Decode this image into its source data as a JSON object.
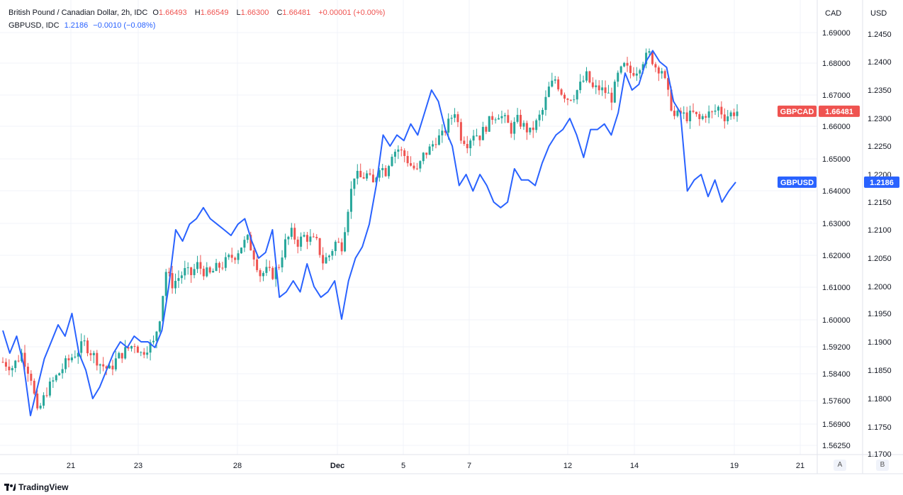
{
  "legend": {
    "main": {
      "title": "British Pound / Canadian Dollar, 2h, IDC",
      "o_label": "O",
      "o": "1.66493",
      "h_label": "H",
      "h": "1.66549",
      "l_label": "L",
      "l": "1.66300",
      "c_label": "C",
      "c": "1.66481",
      "change": "+0.00001 (+0.00%)"
    },
    "compare": {
      "title": "GBPUSD, IDC",
      "value": "1.2186",
      "change": "−0.0010 (−0.08%)"
    }
  },
  "scales": {
    "left_header": "CAD",
    "right_header": "USD",
    "left_button": "A",
    "right_button": "B"
  },
  "badges": {
    "gbpcad_name": "GBPCAD",
    "gbpcad_value": "1.66481",
    "gbpusd_name": "GBPUSD",
    "gbpusd_value": "1.2186"
  },
  "footer": {
    "brand": "TradingView"
  },
  "colors": {
    "up": "#26a69a",
    "down": "#ef5350",
    "line": "#2962ff",
    "grid": "#f0f3fa"
  },
  "chart_data": {
    "type": "line",
    "title": "British Pound / Canadian Dollar, 2h, IDC",
    "x_ticks": [
      "21",
      "23",
      "28",
      "Dec",
      "5",
      "7",
      "12",
      "14",
      "19",
      "21"
    ],
    "cad_axis_ticks": [
      "1.69000",
      "1.68000",
      "1.67000",
      "1.66000",
      "1.65000",
      "1.64000",
      "1.63000",
      "1.62000",
      "1.61000",
      "1.60000",
      "1.59200",
      "1.58400",
      "1.57600",
      "1.56900",
      "1.56250"
    ],
    "usd_axis_ticks": [
      "1.2450",
      "1.2400",
      "1.2350",
      "1.2300",
      "1.2250",
      "1.2200",
      "1.2150",
      "1.2100",
      "1.2050",
      "1.2000",
      "1.1950",
      "1.1900",
      "1.1850",
      "1.1800",
      "1.1750",
      "1.1700"
    ],
    "series": [
      {
        "name": "GBPCAD",
        "type": "candlestick",
        "close_path": [
          [
            0,
            1.5875
          ],
          [
            3,
            1.586
          ],
          [
            6,
            1.59
          ],
          [
            9,
            1.583
          ],
          [
            11,
            1.572
          ],
          [
            14,
            1.579
          ],
          [
            17,
            1.583
          ],
          [
            20,
            1.587
          ],
          [
            23,
            1.59
          ],
          [
            26,
            1.593
          ],
          [
            28,
            1.5905
          ],
          [
            31,
            1.587
          ],
          [
            34,
            1.585
          ],
          [
            36,
            1.588
          ],
          [
            38,
            1.59
          ],
          [
            40,
            1.5915
          ],
          [
            42,
            1.593
          ],
          [
            44,
            1.59
          ],
          [
            46,
            1.592
          ],
          [
            48,
            1.593
          ],
          [
            50,
            1.601
          ],
          [
            52,
            1.615
          ],
          [
            54,
            1.611
          ],
          [
            56,
            1.613
          ],
          [
            58,
            1.615
          ],
          [
            60,
            1.614
          ],
          [
            62,
            1.617
          ],
          [
            64,
            1.615
          ],
          [
            66,
            1.614
          ],
          [
            68,
            1.616
          ],
          [
            70,
            1.617
          ],
          [
            72,
            1.619
          ],
          [
            74,
            1.62
          ],
          [
            76,
            1.623
          ],
          [
            78,
            1.625
          ],
          [
            80,
            1.62
          ],
          [
            82,
            1.614
          ],
          [
            84,
            1.615
          ],
          [
            86,
            1.614
          ],
          [
            88,
            1.617
          ],
          [
            90,
            1.624
          ],
          [
            92,
            1.627
          ],
          [
            94,
            1.624
          ],
          [
            96,
            1.626
          ],
          [
            98,
            1.625
          ],
          [
            100,
            1.624
          ],
          [
            102,
            1.618
          ],
          [
            104,
            1.62
          ],
          [
            106,
            1.624
          ],
          [
            108,
            1.623
          ],
          [
            110,
            1.635
          ],
          [
            112,
            1.645
          ],
          [
            114,
            1.644
          ],
          [
            116,
            1.645
          ],
          [
            118,
            1.642
          ],
          [
            120,
            1.648
          ],
          [
            122,
            1.646
          ],
          [
            124,
            1.652
          ],
          [
            126,
            1.653
          ],
          [
            128,
            1.651
          ],
          [
            130,
            1.648
          ],
          [
            132,
            1.646
          ],
          [
            134,
            1.651
          ],
          [
            136,
            1.653
          ],
          [
            138,
            1.656
          ],
          [
            140,
            1.657
          ],
          [
            142,
            1.661
          ],
          [
            144,
            1.665
          ],
          [
            146,
            1.657
          ],
          [
            148,
            1.655
          ],
          [
            150,
            1.658
          ],
          [
            152,
            1.657
          ],
          [
            154,
            1.66
          ],
          [
            156,
            1.663
          ],
          [
            158,
            1.664
          ],
          [
            160,
            1.662
          ],
          [
            162,
            1.659
          ],
          [
            164,
            1.662
          ],
          [
            166,
            1.66
          ],
          [
            168,
            1.658
          ],
          [
            170,
            1.661
          ],
          [
            172,
            1.665
          ],
          [
            174,
            1.672
          ],
          [
            176,
            1.675
          ],
          [
            178,
            1.671
          ],
          [
            180,
            1.669
          ],
          [
            182,
            1.67
          ],
          [
            184,
            1.673
          ],
          [
            186,
            1.676
          ],
          [
            188,
            1.672
          ],
          [
            190,
            1.672
          ],
          [
            192,
            1.671
          ],
          [
            194,
            1.669
          ],
          [
            196,
            1.676
          ],
          [
            198,
            1.679
          ],
          [
            200,
            1.677
          ],
          [
            202,
            1.678
          ],
          [
            204,
            1.681
          ],
          [
            206,
            1.683
          ],
          [
            208,
            1.679
          ],
          [
            210,
            1.678
          ],
          [
            212,
            1.67
          ],
          [
            214,
            1.663
          ],
          [
            216,
            1.664
          ],
          [
            218,
            1.663
          ],
          [
            220,
            1.664
          ],
          [
            222,
            1.662
          ],
          [
            224,
            1.664
          ],
          [
            226,
            1.664
          ],
          [
            228,
            1.666
          ],
          [
            230,
            1.663
          ],
          [
            232,
            1.664
          ],
          [
            234,
            1.6648
          ]
        ]
      },
      {
        "name": "GBPUSD",
        "type": "line",
        "points": [
          [
            0,
            1.192
          ],
          [
            2,
            1.188
          ],
          [
            4,
            1.191
          ],
          [
            6,
            1.186
          ],
          [
            8,
            1.177
          ],
          [
            10,
            1.182
          ],
          [
            12,
            1.187
          ],
          [
            14,
            1.19
          ],
          [
            16,
            1.193
          ],
          [
            18,
            1.191
          ],
          [
            20,
            1.195
          ],
          [
            22,
            1.188
          ],
          [
            24,
            1.185
          ],
          [
            26,
            1.18
          ],
          [
            28,
            1.182
          ],
          [
            30,
            1.185
          ],
          [
            32,
            1.188
          ],
          [
            34,
            1.19
          ],
          [
            36,
            1.189
          ],
          [
            38,
            1.191
          ],
          [
            40,
            1.19
          ],
          [
            42,
            1.19
          ],
          [
            44,
            1.189
          ],
          [
            46,
            1.192
          ],
          [
            48,
            1.2
          ],
          [
            50,
            1.21
          ],
          [
            52,
            1.208
          ],
          [
            54,
            1.211
          ],
          [
            56,
            1.212
          ],
          [
            58,
            1.214
          ],
          [
            60,
            1.212
          ],
          [
            62,
            1.211
          ],
          [
            64,
            1.21
          ],
          [
            66,
            1.209
          ],
          [
            68,
            1.211
          ],
          [
            70,
            1.212
          ],
          [
            72,
            1.208
          ],
          [
            74,
            1.205
          ],
          [
            76,
            1.206
          ],
          [
            78,
            1.21
          ],
          [
            80,
            1.198
          ],
          [
            82,
            1.199
          ],
          [
            84,
            1.201
          ],
          [
            86,
            1.199
          ],
          [
            88,
            1.204
          ],
          [
            90,
            1.2
          ],
          [
            92,
            1.198
          ],
          [
            94,
            1.199
          ],
          [
            96,
            1.201
          ],
          [
            98,
            1.194
          ],
          [
            100,
            1.201
          ],
          [
            102,
            1.205
          ],
          [
            104,
            1.207
          ],
          [
            106,
            1.211
          ],
          [
            108,
            1.218
          ],
          [
            110,
            1.227
          ],
          [
            112,
            1.225
          ],
          [
            114,
            1.227
          ],
          [
            116,
            1.226
          ],
          [
            118,
            1.229
          ],
          [
            120,
            1.227
          ],
          [
            122,
            1.231
          ],
          [
            124,
            1.235
          ],
          [
            126,
            1.233
          ],
          [
            128,
            1.228
          ],
          [
            130,
            1.225
          ],
          [
            132,
            1.218
          ],
          [
            134,
            1.22
          ],
          [
            136,
            1.217
          ],
          [
            138,
            1.22
          ],
          [
            140,
            1.218
          ],
          [
            142,
            1.215
          ],
          [
            144,
            1.214
          ],
          [
            146,
            1.215
          ],
          [
            148,
            1.221
          ],
          [
            150,
            1.219
          ],
          [
            152,
            1.219
          ],
          [
            154,
            1.218
          ],
          [
            156,
            1.222
          ],
          [
            158,
            1.225
          ],
          [
            160,
            1.227
          ],
          [
            162,
            1.228
          ],
          [
            164,
            1.23
          ],
          [
            166,
            1.227
          ],
          [
            168,
            1.223
          ],
          [
            170,
            1.228
          ],
          [
            172,
            1.228
          ],
          [
            174,
            1.229
          ],
          [
            176,
            1.227
          ],
          [
            178,
            1.231
          ],
          [
            180,
            1.238
          ],
          [
            182,
            1.235
          ],
          [
            184,
            1.236
          ],
          [
            186,
            1.24
          ],
          [
            188,
            1.242
          ],
          [
            190,
            1.24
          ],
          [
            192,
            1.239
          ],
          [
            194,
            1.233
          ],
          [
            196,
            1.231
          ],
          [
            198,
            1.217
          ],
          [
            200,
            1.219
          ],
          [
            202,
            1.22
          ],
          [
            204,
            1.216
          ],
          [
            206,
            1.219
          ],
          [
            208,
            1.215
          ],
          [
            210,
            1.217
          ],
          [
            212,
            1.2186
          ]
        ]
      }
    ]
  }
}
